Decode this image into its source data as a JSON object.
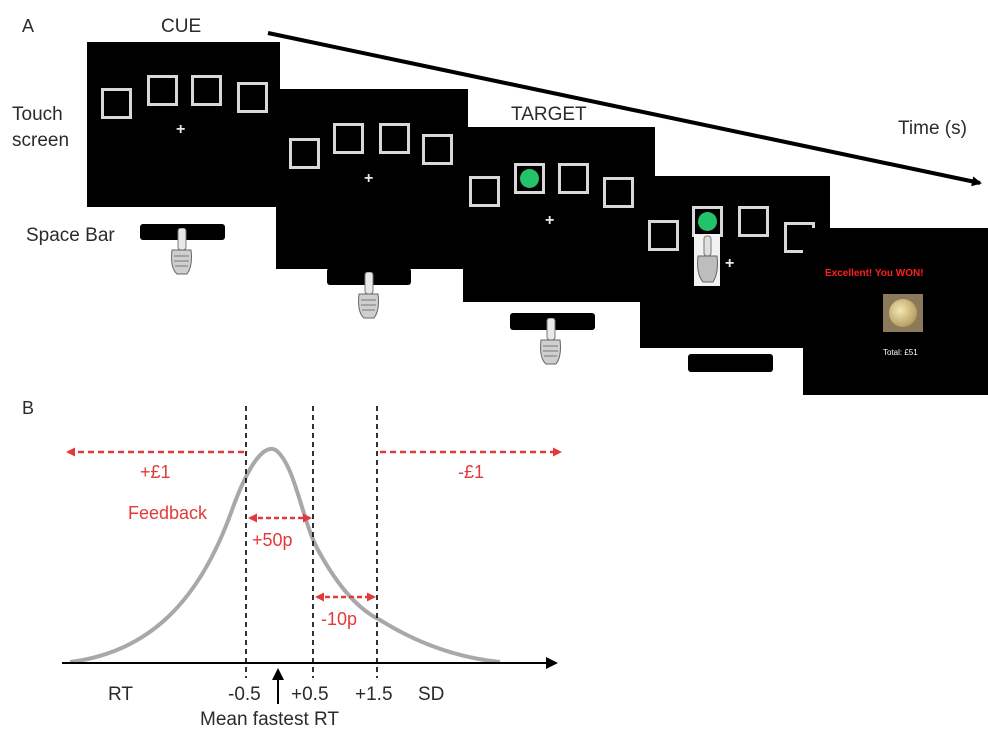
{
  "panel_a": {
    "letter": "A",
    "cue_label": "CUE",
    "target_label": "TARGET",
    "time_label": "Time (s)",
    "touch_label_line1": "Touch",
    "touch_label_line2": "screen",
    "spacebar_label": "Space Bar",
    "feedback_message": "Excellent! You WON!",
    "total_text": "Total: £51",
    "colors": {
      "screen": "#000000",
      "target": "#22c36a",
      "feedback": "#ff1f1f"
    }
  },
  "panel_b": {
    "letter": "B",
    "reward_left": "+£1",
    "reward_right": "-£1",
    "feedback_label": "Feedback",
    "reward_50p": "+50p",
    "reward_10p": "-10p",
    "x_rt": "RT",
    "tick_m05": "-0.5",
    "tick_p05": "+0.5",
    "tick_p15": "+1.5",
    "x_sd": "SD",
    "mean_label": "Mean fastest RT",
    "colors": {
      "arrows": "#e23a3a",
      "curve": "#a8a8a8"
    }
  }
}
